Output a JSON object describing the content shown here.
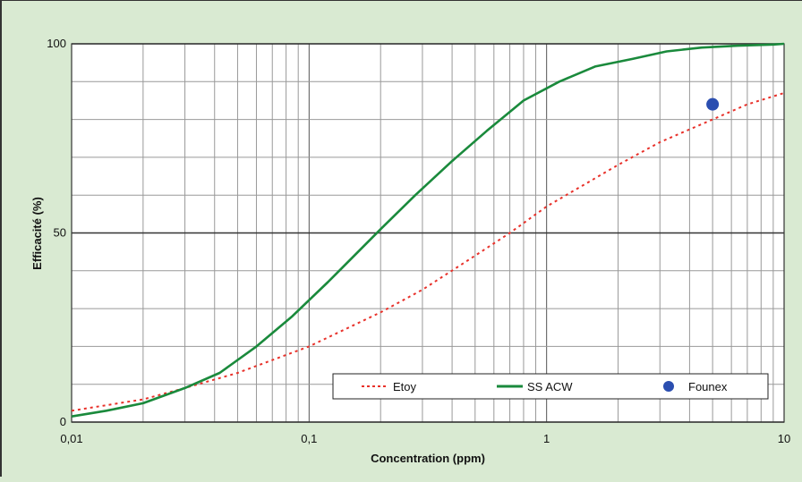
{
  "chart_data": {
    "type": "line",
    "xlabel": "Concentration (ppm)",
    "ylabel": "Efficacité (%)",
    "x_scale": "log",
    "xlim": [
      0.01,
      10
    ],
    "ylim": [
      0,
      100
    ],
    "x_ticks": [
      "0,01",
      "0,1",
      "1",
      "10"
    ],
    "y_ticks": [
      "0",
      "50",
      "100"
    ],
    "grid": true,
    "legend_position": "bottom-right",
    "series": [
      {
        "name": "Etoy",
        "style": "dotted",
        "color": "#e8312a",
        "x": [
          0.01,
          0.02,
          0.03,
          0.05,
          0.1,
          0.2,
          0.3,
          0.5,
          0.7,
          1,
          2,
          3,
          5,
          7,
          10
        ],
        "y": [
          3,
          6,
          9,
          13,
          20,
          29,
          35,
          44,
          50,
          57,
          68,
          74,
          80,
          84,
          87
        ]
      },
      {
        "name": "SS ACW",
        "style": "solid",
        "color": "#1a8a3c",
        "x": [
          0.01,
          0.014,
          0.02,
          0.03,
          0.042,
          0.06,
          0.085,
          0.12,
          0.2,
          0.28,
          0.4,
          0.56,
          0.8,
          1.13,
          1.6,
          2.3,
          3.2,
          4.5,
          6.4,
          9,
          10
        ],
        "y": [
          1.5,
          3,
          5,
          9,
          13,
          20,
          28,
          37,
          51,
          60,
          69,
          77,
          85,
          90,
          94,
          96,
          98,
          99,
          99.5,
          99.8,
          100
        ]
      },
      {
        "name": "Founex",
        "style": "marker",
        "color": "#2b4eb0",
        "x": [
          5
        ],
        "y": [
          84
        ]
      }
    ]
  }
}
